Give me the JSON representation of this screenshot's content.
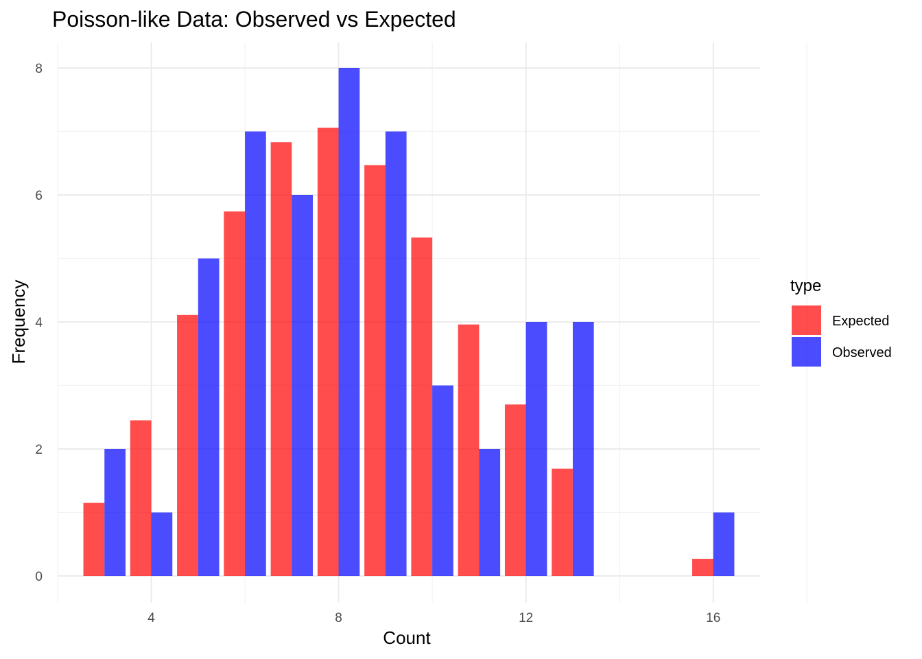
{
  "chart_data": {
    "type": "bar",
    "title": "Poisson-like Data: Observed vs Expected",
    "xlabel": "Count",
    "ylabel": "Frequency",
    "xlim": [
      2,
      17
    ],
    "ylim": [
      0,
      8
    ],
    "x_ticks": [
      4,
      8,
      12,
      16
    ],
    "y_ticks": [
      0,
      2,
      4,
      6,
      8
    ],
    "grid": true,
    "legend": {
      "title": "type",
      "position": "right"
    },
    "series": [
      {
        "name": "Expected",
        "color": "#ff0000",
        "points": [
          {
            "x": 3,
            "y": 1.15
          },
          {
            "x": 4,
            "y": 2.45
          },
          {
            "x": 5,
            "y": 4.11
          },
          {
            "x": 6,
            "y": 5.74
          },
          {
            "x": 7,
            "y": 6.83
          },
          {
            "x": 8,
            "y": 7.06
          },
          {
            "x": 9,
            "y": 6.47
          },
          {
            "x": 10,
            "y": 5.33
          },
          {
            "x": 11,
            "y": 3.96
          },
          {
            "x": 12,
            "y": 2.7
          },
          {
            "x": 13,
            "y": 1.69
          },
          {
            "x": 16,
            "y": 0.27
          }
        ]
      },
      {
        "name": "Observed",
        "color": "#0000ff",
        "points": [
          {
            "x": 3,
            "y": 2
          },
          {
            "x": 4,
            "y": 1
          },
          {
            "x": 5,
            "y": 5
          },
          {
            "x": 6,
            "y": 7
          },
          {
            "x": 7,
            "y": 6
          },
          {
            "x": 8,
            "y": 8
          },
          {
            "x": 9,
            "y": 7
          },
          {
            "x": 10,
            "y": 3
          },
          {
            "x": 11,
            "y": 2
          },
          {
            "x": 12,
            "y": 4
          },
          {
            "x": 13,
            "y": 4
          },
          {
            "x": 16,
            "y": 1
          }
        ]
      }
    ]
  }
}
